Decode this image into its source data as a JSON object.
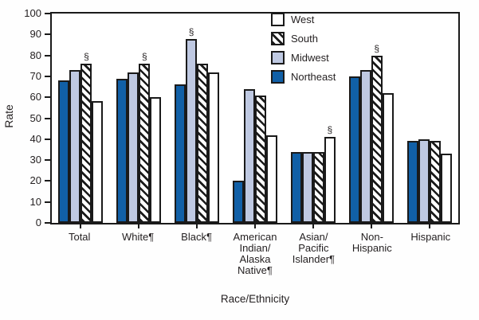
{
  "colors": {
    "northeast_blue": "#1160a7",
    "midwest_lightblue": "#bfc9e2",
    "hatch_black": "#1a1a1a",
    "frame_black": "#1a1a1a",
    "text": "#231f20",
    "background": "#ffffff"
  },
  "chart_data": {
    "type": "bar",
    "title": "",
    "xlabel": "Race/Ethnicity",
    "ylabel": "Rate",
    "ylim": [
      0,
      100
    ],
    "ytick_step": 10,
    "grid": false,
    "legend_position": "top-center-inside",
    "legend_order": [
      "West",
      "South",
      "Midwest",
      "Northeast"
    ],
    "bar_order_left_to_right": [
      "Northeast",
      "Midwest",
      "South",
      "West"
    ],
    "categories": [
      "Total",
      "White¶",
      "Black¶",
      "American\nIndian/\nAlaska\nNative¶",
      "Asian/\nPacific\nIslander¶",
      "Non-\nHispanic",
      "Hispanic"
    ],
    "series": [
      {
        "name": "West",
        "style": "white",
        "values": [
          58,
          60,
          72,
          42,
          41,
          62,
          33
        ]
      },
      {
        "name": "South",
        "style": "hatched",
        "values": [
          76,
          76,
          76,
          61,
          34,
          80,
          39
        ]
      },
      {
        "name": "Midwest",
        "style": "lightblue",
        "values": [
          73,
          72,
          88,
          64,
          34,
          73,
          40
        ]
      },
      {
        "name": "Northeast",
        "style": "darkblue",
        "values": [
          68,
          69,
          66,
          20,
          34,
          70,
          39
        ]
      }
    ],
    "annotations": [
      {
        "category_index": 0,
        "series": "South",
        "symbol": "§"
      },
      {
        "category_index": 1,
        "series": "South",
        "symbol": "§"
      },
      {
        "category_index": 2,
        "series": "Midwest",
        "symbol": "§"
      },
      {
        "category_index": 4,
        "series": "West",
        "symbol": "§"
      },
      {
        "category_index": 5,
        "series": "South",
        "symbol": "§"
      }
    ]
  }
}
